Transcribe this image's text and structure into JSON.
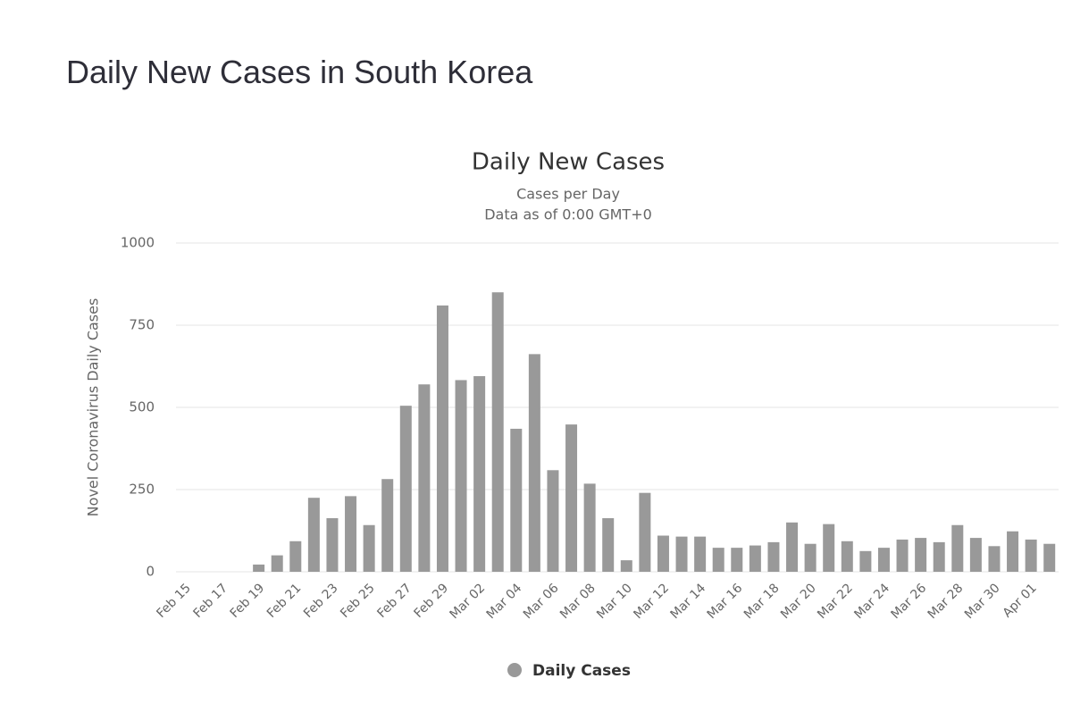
{
  "page": {
    "heading": "Daily New Cases in South Korea"
  },
  "chart_data": {
    "type": "bar",
    "title": "Daily New Cases",
    "subtitle": [
      "Cases per Day",
      "Data as of 0:00 GMT+0"
    ],
    "y_label": "Novel Coronavirus Daily Cases",
    "categories": [
      "Feb 15",
      null,
      "Feb 17",
      null,
      "Feb 19",
      null,
      "Feb 21",
      null,
      "Feb 23",
      null,
      "Feb 25",
      null,
      "Feb 27",
      null,
      "Feb 29",
      null,
      "Mar 02",
      null,
      "Mar 04",
      null,
      "Mar 06",
      null,
      "Mar 08",
      null,
      "Mar 10",
      null,
      "Mar 12",
      null,
      "Mar 14",
      null,
      "Mar 16",
      null,
      "Mar 18",
      null,
      "Mar 20",
      null,
      "Mar 22",
      null,
      "Mar 24",
      null,
      "Mar 26",
      null,
      "Mar 28",
      null,
      "Mar 30",
      null,
      "Apr 01",
      null
    ],
    "series": [
      {
        "name": "Daily Cases",
        "color": "#999999",
        "values": [
          0,
          0,
          0,
          0,
          22,
          50,
          93,
          225,
          163,
          230,
          142,
          282,
          505,
          570,
          810,
          583,
          595,
          850,
          435,
          662,
          309,
          448,
          268,
          163,
          35,
          240,
          110,
          107,
          107,
          73,
          73,
          80,
          90,
          150,
          85,
          145,
          93,
          63,
          73,
          98,
          103,
          90,
          142,
          103,
          78,
          123,
          98,
          85
        ]
      }
    ],
    "ylim": [
      0,
      1000
    ],
    "yticks": [
      0,
      250,
      500,
      750,
      1000
    ],
    "grid": true,
    "legend": "bottom"
  }
}
